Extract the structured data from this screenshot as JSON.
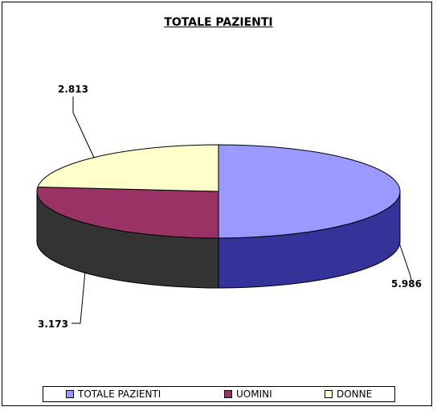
{
  "chart_data": {
    "type": "pie",
    "title": "TOTALE PAZIENTI",
    "slices": [
      {
        "name": "TOTALE PAZIENTI",
        "value": 5986,
        "label": "5.986",
        "color": "#9999ff",
        "side_color": "#333399"
      },
      {
        "name": "UOMINI",
        "value": 3173,
        "label": "3.173",
        "color": "#993366",
        "side_color": "#333333"
      },
      {
        "name": "DONNE",
        "value": 2813,
        "label": "2.813",
        "color": "#ffffcc",
        "side_color": "#333333"
      }
    ],
    "legend_position": "bottom",
    "style": "3d"
  }
}
